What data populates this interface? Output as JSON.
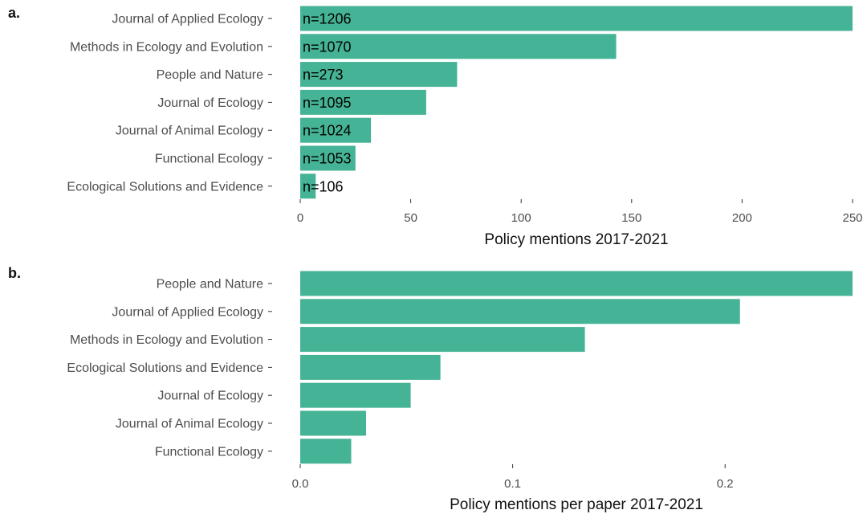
{
  "chart_data": [
    {
      "type": "bar",
      "orientation": "horizontal",
      "panel_label": "a.",
      "categories": [
        "Journal of Applied Ecology",
        "Methods in Ecology and Evolution",
        "People and Nature",
        "Journal of Ecology",
        "Journal of Animal Ecology",
        "Functional Ecology",
        "Ecological Solutions and Evidence"
      ],
      "values": [
        250,
        143,
        71,
        57,
        32,
        25,
        7
      ],
      "bar_labels": [
        "n=1206",
        "n=1070",
        "n=273",
        "n=1095",
        "n=1024",
        "n=1053",
        "n=106"
      ],
      "xlabel": "Policy mentions 2017-2021",
      "xlim": [
        0,
        250
      ],
      "xticks": [
        0,
        50,
        100,
        150,
        200,
        250
      ],
      "xtick_labels": [
        "0",
        "50",
        "100",
        "150",
        "200",
        "250"
      ],
      "color": "#45B395",
      "grid": false
    },
    {
      "type": "bar",
      "orientation": "horizontal",
      "panel_label": "b.",
      "categories": [
        "People and Nature",
        "Journal of Applied Ecology",
        "Methods in Ecology and Evolution",
        "Ecological Solutions and Evidence",
        "Journal of Ecology",
        "Journal of Animal Ecology",
        "Functional Ecology"
      ],
      "values": [
        0.26,
        0.207,
        0.134,
        0.066,
        0.052,
        0.031,
        0.024
      ],
      "xlabel": "Policy mentions per paper 2017-2021",
      "xlim": [
        0,
        0.26
      ],
      "xticks": [
        0,
        0.1,
        0.2
      ],
      "xtick_labels": [
        "0.0",
        "0.1",
        "0.2"
      ],
      "color": "#45B395",
      "grid": false
    }
  ]
}
